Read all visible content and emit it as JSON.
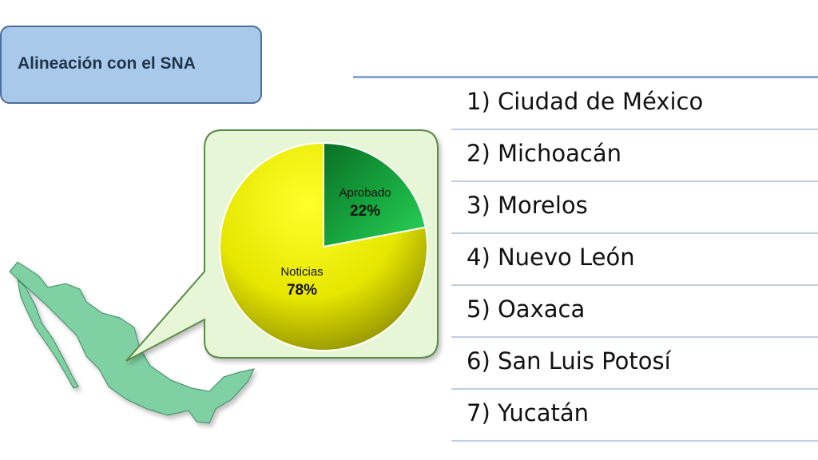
{
  "title": "Alineación con el SNA",
  "states": [
    "1) Ciudad de México",
    "2) Michoacán",
    "3) Morelos",
    "4) Nuevo León",
    "5) Oaxaca",
    "6) San Luis Potosí",
    "7) Yucatán"
  ],
  "map_icon": "mexico-map-icon",
  "colors": {
    "title_box": "#a9c9ea",
    "callout": "#e6f6d6",
    "map": "#7fd0a2",
    "aprobado": "#13a03c",
    "noticias": "#d8d800"
  },
  "chart_data": {
    "type": "pie",
    "slices": [
      {
        "label": "Aprobado",
        "value": 22,
        "display": "22%"
      },
      {
        "label": "Noticias",
        "value": 78,
        "display": "78%"
      }
    ]
  }
}
